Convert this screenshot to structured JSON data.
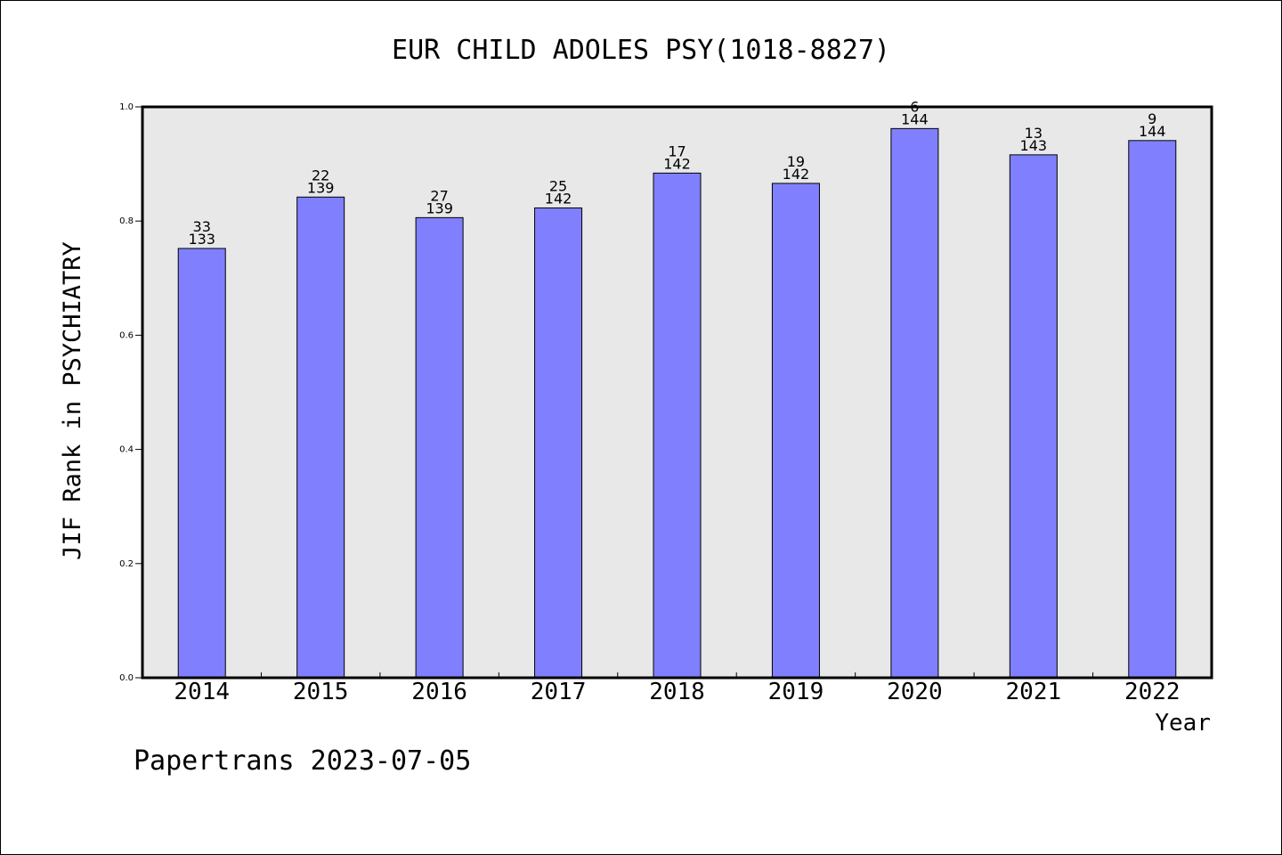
{
  "colors": {
    "bar_fill": "#8080ff",
    "plot_bg": "#e8e8e8",
    "axis": "#000000"
  },
  "footer": {
    "credit": "Papertrans 2023-07-05"
  },
  "chart_data": {
    "type": "bar",
    "title": "EUR CHILD ADOLES PSY(1018-8827)",
    "xlabel": "Year",
    "ylabel": "JIF Rank in PSYCHIATRY",
    "ylim": [
      0,
      1.0
    ],
    "y_ticks": [
      "0.0",
      "0.2",
      "0.4",
      "0.6",
      "0.8",
      "1.0"
    ],
    "grid": false,
    "categories": [
      "2014",
      "2015",
      "2016",
      "2017",
      "2018",
      "2019",
      "2020",
      "2021",
      "2022"
    ],
    "values": [
      0.752,
      0.842,
      0.806,
      0.823,
      0.884,
      0.866,
      0.962,
      0.916,
      0.941
    ],
    "rank": [
      "33",
      "22",
      "27",
      "25",
      "17",
      "19",
      "6",
      "13",
      "9"
    ],
    "total": [
      "133",
      "139",
      "139",
      "142",
      "142",
      "142",
      "144",
      "143",
      "144"
    ]
  }
}
